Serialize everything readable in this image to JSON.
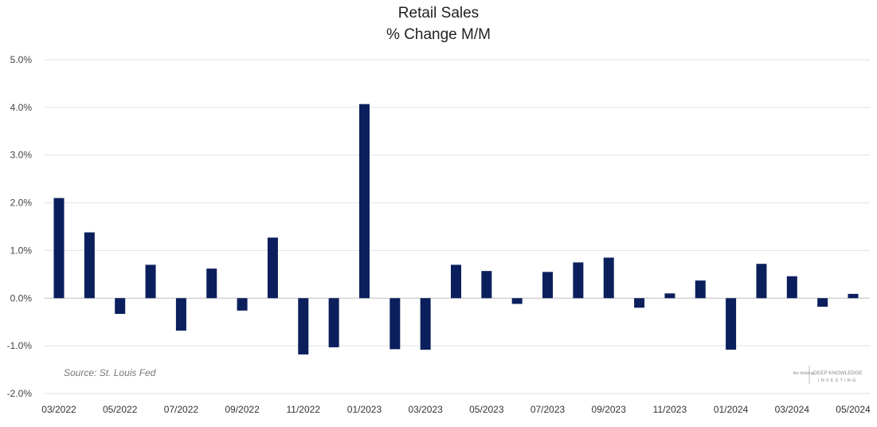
{
  "chart_data": {
    "type": "bar",
    "title": "Retail Sales",
    "subtitle": "% Change M/M",
    "source_note": "Source: St. Louis Fed",
    "logo": {
      "left_text": "the thinking",
      "brand_line1": "DEEP KNOWLEDGE",
      "brand_line2": "INVESTING"
    },
    "xlabel": "",
    "ylabel": "",
    "ylim": [
      -2.0,
      5.0
    ],
    "yticks": [
      -2.0,
      -1.0,
      0.0,
      1.0,
      2.0,
      3.0,
      4.0,
      5.0
    ],
    "ytick_labels": [
      "-2.0%",
      "-1.0%",
      "0.0%",
      "1.0%",
      "2.0%",
      "3.0%",
      "4.0%",
      "5.0%"
    ],
    "grid": true,
    "bar_color": "#0b1f5c",
    "categories": [
      "03/2022",
      "04/2022",
      "05/2022",
      "06/2022",
      "07/2022",
      "08/2022",
      "09/2022",
      "10/2022",
      "11/2022",
      "12/2022",
      "01/2023",
      "02/2023",
      "03/2023",
      "04/2023",
      "05/2023",
      "06/2023",
      "07/2023",
      "08/2023",
      "09/2023",
      "10/2023",
      "11/2023",
      "12/2023",
      "01/2024",
      "02/2024",
      "03/2024",
      "04/2024",
      "05/2024"
    ],
    "xtick_labels": [
      "03/2022",
      "",
      "05/2022",
      "",
      "07/2022",
      "",
      "09/2022",
      "",
      "11/2022",
      "",
      "01/2023",
      "",
      "03/2023",
      "",
      "05/2023",
      "",
      "07/2023",
      "",
      "09/2023",
      "",
      "11/2023",
      "",
      "01/2024",
      "",
      "03/2024",
      "",
      "05/2024"
    ],
    "values": [
      2.1,
      1.38,
      -0.33,
      0.7,
      -0.68,
      0.62,
      -0.26,
      1.27,
      -1.18,
      -1.03,
      4.07,
      -1.07,
      -1.08,
      0.7,
      0.57,
      -0.12,
      0.55,
      0.75,
      0.85,
      -0.2,
      0.1,
      0.37,
      -1.08,
      0.72,
      0.46,
      -0.18,
      0.09
    ]
  }
}
